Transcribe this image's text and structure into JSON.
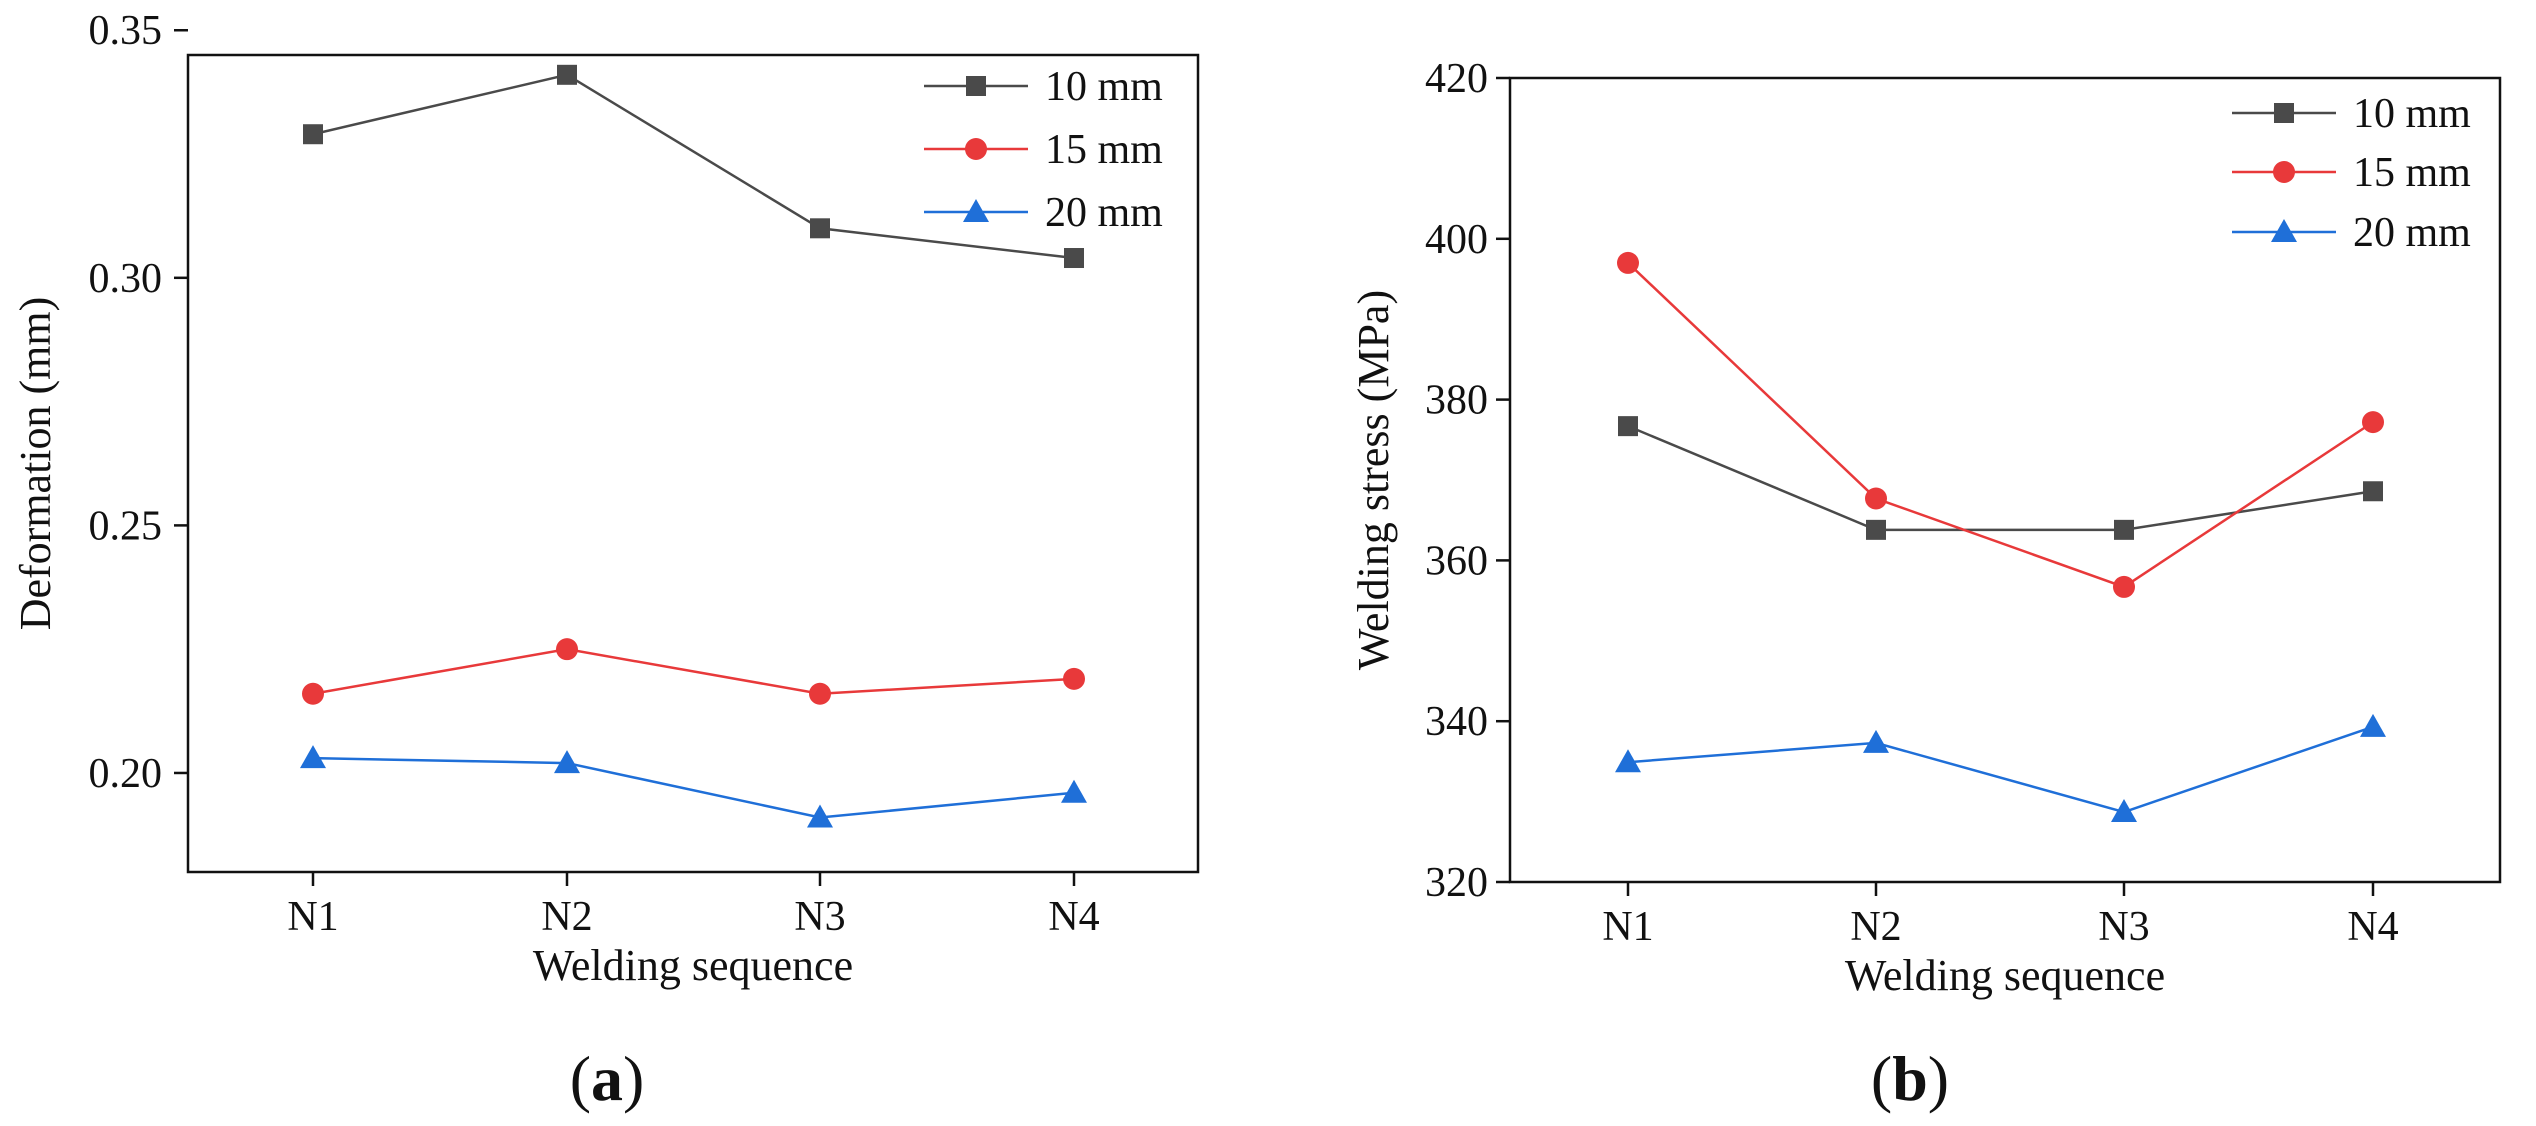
{
  "chart_data": [
    {
      "type": "line",
      "panel_label": {
        "open": "(",
        "letter": "a",
        "close": ")"
      },
      "categories": [
        "N1",
        "N2",
        "N3",
        "N4"
      ],
      "xlabel": "Welding sequence",
      "ylabel": "Deformation (mm)",
      "ylim": [
        0.18,
        0.345
      ],
      "yticks": [
        0.2,
        0.25,
        0.3,
        0.35
      ],
      "ytick_labels": [
        "0.20",
        "0.25",
        "0.30",
        "0.35"
      ],
      "grid": false,
      "legend_position": "top-right",
      "series": [
        {
          "name": "10 mm",
          "marker": "square",
          "color": "#4a4a4a",
          "values": [
            0.329,
            0.341,
            0.31,
            0.304
          ]
        },
        {
          "name": "15 mm",
          "marker": "circle",
          "color": "#e8393a",
          "values": [
            0.216,
            0.225,
            0.216,
            0.219
          ]
        },
        {
          "name": "20 mm",
          "marker": "triangle",
          "color": "#1f6fd8",
          "values": [
            0.203,
            0.202,
            0.191,
            0.196
          ]
        }
      ]
    },
    {
      "type": "line",
      "panel_label": {
        "open": "(",
        "letter": "b",
        "close": ")"
      },
      "categories": [
        "N1",
        "N2",
        "N3",
        "N4"
      ],
      "xlabel": "Welding sequence",
      "ylabel": "Welding stress (MPa)",
      "ylim": [
        320,
        420
      ],
      "yticks": [
        320,
        340,
        360,
        380,
        400,
        420
      ],
      "ytick_labels": [
        "320",
        "340",
        "360",
        "380",
        "400",
        "420"
      ],
      "grid": false,
      "legend_position": "top-right",
      "series": [
        {
          "name": "10 mm",
          "marker": "square",
          "color": "#4a4a4a",
          "values": [
            376.7,
            363.8,
            363.8,
            368.6
          ]
        },
        {
          "name": "15 mm",
          "marker": "circle",
          "color": "#e8393a",
          "values": [
            397.0,
            367.7,
            356.7,
            377.2
          ]
        },
        {
          "name": "20 mm",
          "marker": "triangle",
          "color": "#1f6fd8",
          "values": [
            334.9,
            337.3,
            328.7,
            339.3
          ]
        }
      ]
    }
  ]
}
